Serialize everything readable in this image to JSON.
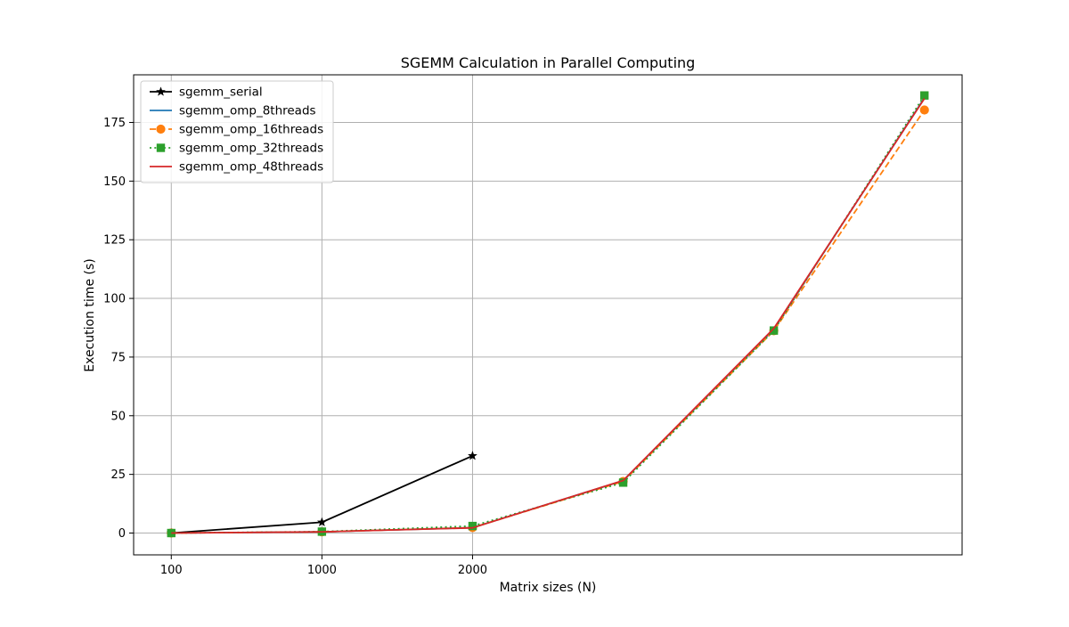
{
  "chart_data": {
    "type": "line",
    "title": "SGEMM Calculation in Parallel Computing",
    "xlabel": "Matrix sizes (N)",
    "ylabel": "Execution time (s)",
    "x_positions": [
      0,
      1,
      2,
      3,
      4,
      5
    ],
    "xtick_positions": [
      0,
      1,
      2
    ],
    "xtick_labels": [
      "100",
      "1000",
      "2000"
    ],
    "xlim": [
      -0.25,
      5.25
    ],
    "ylim": [
      -9.3,
      195.3
    ],
    "yticks": [
      0,
      25,
      50,
      75,
      100,
      125,
      150,
      175
    ],
    "grid": true,
    "legend_position": "top-left",
    "series": [
      {
        "name": "sgemm_serial",
        "values": [
          0.0,
          4.6,
          32.9
        ],
        "color": "#000000",
        "linestyle": "solid",
        "marker": "star"
      },
      {
        "name": "sgemm_omp_8threads",
        "values": [
          0.0,
          0.5,
          2.3,
          22.3,
          86.8,
          185.5
        ],
        "color": "#1f77b4",
        "linestyle": "solid",
        "marker": "none"
      },
      {
        "name": "sgemm_omp_16threads",
        "values": [
          0.0,
          0.5,
          2.3,
          22.0,
          86.2,
          180.3
        ],
        "color": "#ff7f0e",
        "linestyle": "dashed",
        "marker": "circle"
      },
      {
        "name": "sgemm_omp_32threads",
        "values": [
          0.0,
          0.6,
          3.0,
          21.5,
          86.3,
          186.5
        ],
        "color": "#2ca02c",
        "linestyle": "dotted",
        "marker": "square"
      },
      {
        "name": "sgemm_omp_48threads",
        "values": [
          0.0,
          0.5,
          2.2,
          22.4,
          87.2,
          185.2
        ],
        "color": "#d62728",
        "linestyle": "solid",
        "marker": "none"
      }
    ]
  }
}
